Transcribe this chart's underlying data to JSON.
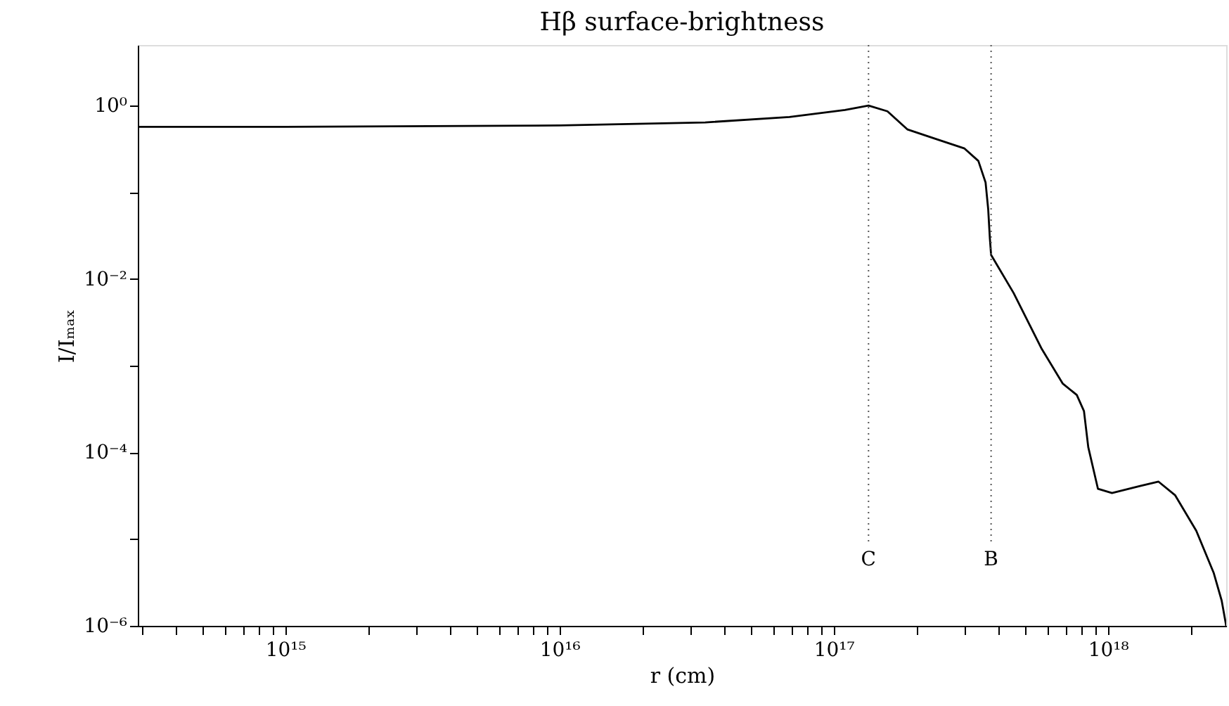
{
  "chart_data": {
    "type": "line",
    "title": "Hβ surface-brightness",
    "xlabel": "r (cm)",
    "ylabel": "I/Iₘₐₓ",
    "log": "xy",
    "grid": false,
    "marker": "none",
    "line_style": "solid",
    "xlim": [
      290000000000000.0,
      2.7e+18
    ],
    "ylim": [
      1e-06,
      5
    ],
    "xticks": [
      {
        "value": 1000000000000000.0,
        "label": "10¹⁵"
      },
      {
        "value": 1e+16,
        "label": "10¹⁶"
      },
      {
        "value": 1e+17,
        "label": "10¹⁷"
      },
      {
        "value": 1e+18,
        "label": "10¹⁸"
      },
      {
        "value": 300000000000000.0,
        "label": null
      },
      {
        "value": 400000000000000.0,
        "label": null
      },
      {
        "value": 500000000000000.0,
        "label": null
      },
      {
        "value": 600000000000000.0,
        "label": null
      },
      {
        "value": 700000000000000.0,
        "label": null
      },
      {
        "value": 800000000000000.0,
        "label": null
      },
      {
        "value": 900000000000000.0,
        "label": null
      },
      {
        "value": 2000000000000000.0,
        "label": null
      },
      {
        "value": 3000000000000000.0,
        "label": null
      },
      {
        "value": 4000000000000000.0,
        "label": null
      },
      {
        "value": 5000000000000000.0,
        "label": null
      },
      {
        "value": 6000000000000000.0,
        "label": null
      },
      {
        "value": 7000000000000000.0,
        "label": null
      },
      {
        "value": 8000000000000000.0,
        "label": null
      },
      {
        "value": 9000000000000000.0,
        "label": null
      },
      {
        "value": 2e+16,
        "label": null
      },
      {
        "value": 3e+16,
        "label": null
      },
      {
        "value": 4e+16,
        "label": null
      },
      {
        "value": 5e+16,
        "label": null
      },
      {
        "value": 6e+16,
        "label": null
      },
      {
        "value": 7e+16,
        "label": null
      },
      {
        "value": 8e+16,
        "label": null
      },
      {
        "value": 9e+16,
        "label": null
      },
      {
        "value": 2e+17,
        "label": null
      },
      {
        "value": 3e+17,
        "label": null
      },
      {
        "value": 4e+17,
        "label": null
      },
      {
        "value": 5e+17,
        "label": null
      },
      {
        "value": 6e+17,
        "label": null
      },
      {
        "value": 7e+17,
        "label": null
      },
      {
        "value": 8e+17,
        "label": null
      },
      {
        "value": 9e+17,
        "label": null
      },
      {
        "value": 2e+18,
        "label": null
      }
    ],
    "yticks": [
      {
        "value": 1,
        "label": "10⁰"
      },
      {
        "value": 0.01,
        "label": "10⁻²"
      },
      {
        "value": 0.0001,
        "label": "10⁻⁴"
      },
      {
        "value": 1e-06,
        "label": "10⁻⁶"
      },
      {
        "value": 0.1,
        "label": null
      },
      {
        "value": 0.001,
        "label": null
      },
      {
        "value": 1e-05,
        "label": null
      }
    ],
    "series": [
      {
        "color": "#000000",
        "x": [
          293000000000000.0,
          1000000000000000.0,
          1e+16,
          3.4e+16,
          6.9e+16,
          1.1e+17,
          1.34e+17,
          1.57e+17,
          1.86e+17,
          2.37e+17,
          3e+17,
          3.37e+17,
          3.58e+17,
          3.66e+17,
          3.71e+17,
          3.75e+17,
          4.53e+17,
          5.74e+17,
          6.85e+17,
          7.7e+17,
          8.18e+17,
          8.48e+17,
          9.2e+17,
          1.035e+18,
          1.31e+18,
          1.53e+18,
          1.76e+18,
          2.1e+18,
          2.43e+18,
          2.6e+18,
          2.7e+18
        ],
        "values": [
          0.57,
          0.57,
          0.59,
          0.64,
          0.74,
          0.89,
          1.0,
          0.86,
          0.53,
          0.41,
          0.32,
          0.23,
          0.13,
          0.064,
          0.03,
          0.019,
          0.0069,
          0.00156,
          0.00062,
          0.00046,
          0.0003,
          0.000115,
          3.8e-05,
          3.4e-05,
          4.1e-05,
          4.6e-05,
          3.2e-05,
          1.25e-05,
          4.1e-06,
          1.95e-06,
          1e-06
        ]
      }
    ],
    "ref_lines": [
      {
        "axis": "x",
        "value": 1.34e+17,
        "label": "C",
        "line_style": "dotted",
        "color": "#555555"
      },
      {
        "axis": "x",
        "value": 3.75e+17,
        "label": "B",
        "line_style": "dotted",
        "color": "#555555"
      }
    ]
  }
}
